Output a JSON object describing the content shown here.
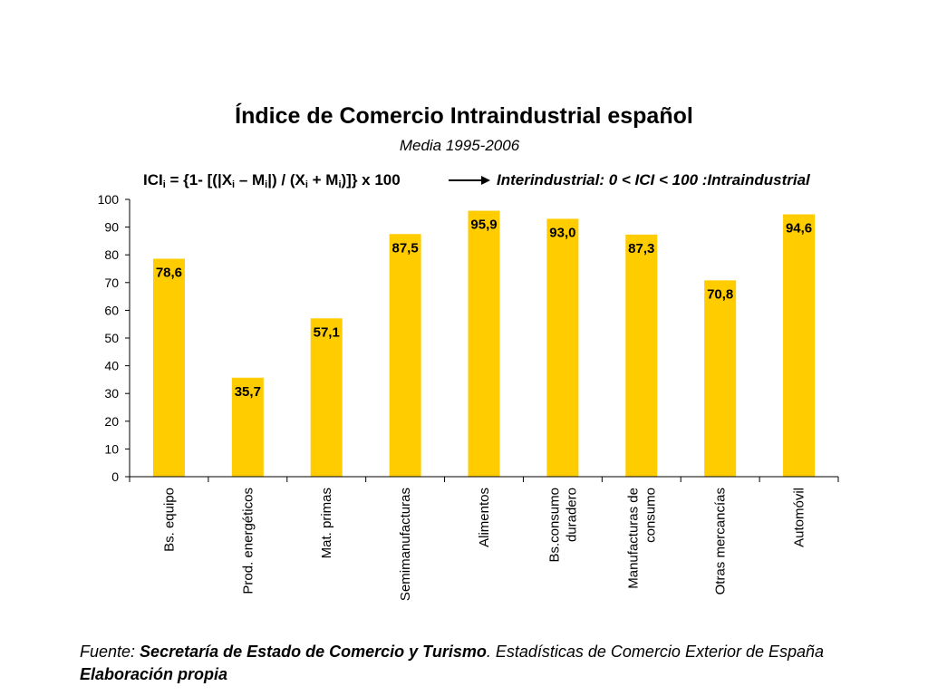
{
  "colors": {
    "bar": "#FFCC00",
    "axis": "#000000"
  },
  "header": {
    "title": "Índice de Comercio Intraindustrial español",
    "subtitle": "Media 1995-2006",
    "formula_note": "Interindustrial: 0 < ICI < 100 :Intraindustrial"
  },
  "formula": {
    "p1": "ICI",
    "p2": " = {1- [(|X",
    "p3": " – M",
    "p4": "|) / (X",
    "p5": " + M",
    "p6": ")]} x 100",
    "sub": "i"
  },
  "source": {
    "label": "Fuente: ",
    "org": "Secretaría de Estado de Comercio y Turismo",
    "rest": ". Estadísticas de Comercio Exterior de España",
    "line2": "Elaboración propia"
  },
  "chart_data": {
    "type": "bar",
    "title": "Índice de Comercio Intraindustrial español",
    "subtitle": "Media 1995-2006",
    "categories": [
      [
        "Bs. equipo"
      ],
      [
        "Prod. energéticos"
      ],
      [
        "Mat. primas"
      ],
      [
        "Semimanufacturas"
      ],
      [
        "Alimentos"
      ],
      [
        "Bs.consumo",
        "duradero"
      ],
      [
        "Manufacturas de",
        "consumo"
      ],
      [
        "Otras mercancías"
      ],
      [
        "Automóvil"
      ]
    ],
    "values": [
      78.6,
      35.7,
      57.1,
      87.5,
      95.9,
      93.0,
      87.3,
      70.8,
      94.6
    ],
    "value_labels": [
      "78,6",
      "35,7",
      "57,1",
      "87,5",
      "95,9",
      "93,0",
      "87,3",
      "70,8",
      "94,6"
    ],
    "ylim": [
      0,
      100
    ],
    "yticks": [
      0,
      10,
      20,
      30,
      40,
      50,
      60,
      70,
      80,
      90,
      100
    ],
    "grid": false,
    "legend": "none"
  }
}
